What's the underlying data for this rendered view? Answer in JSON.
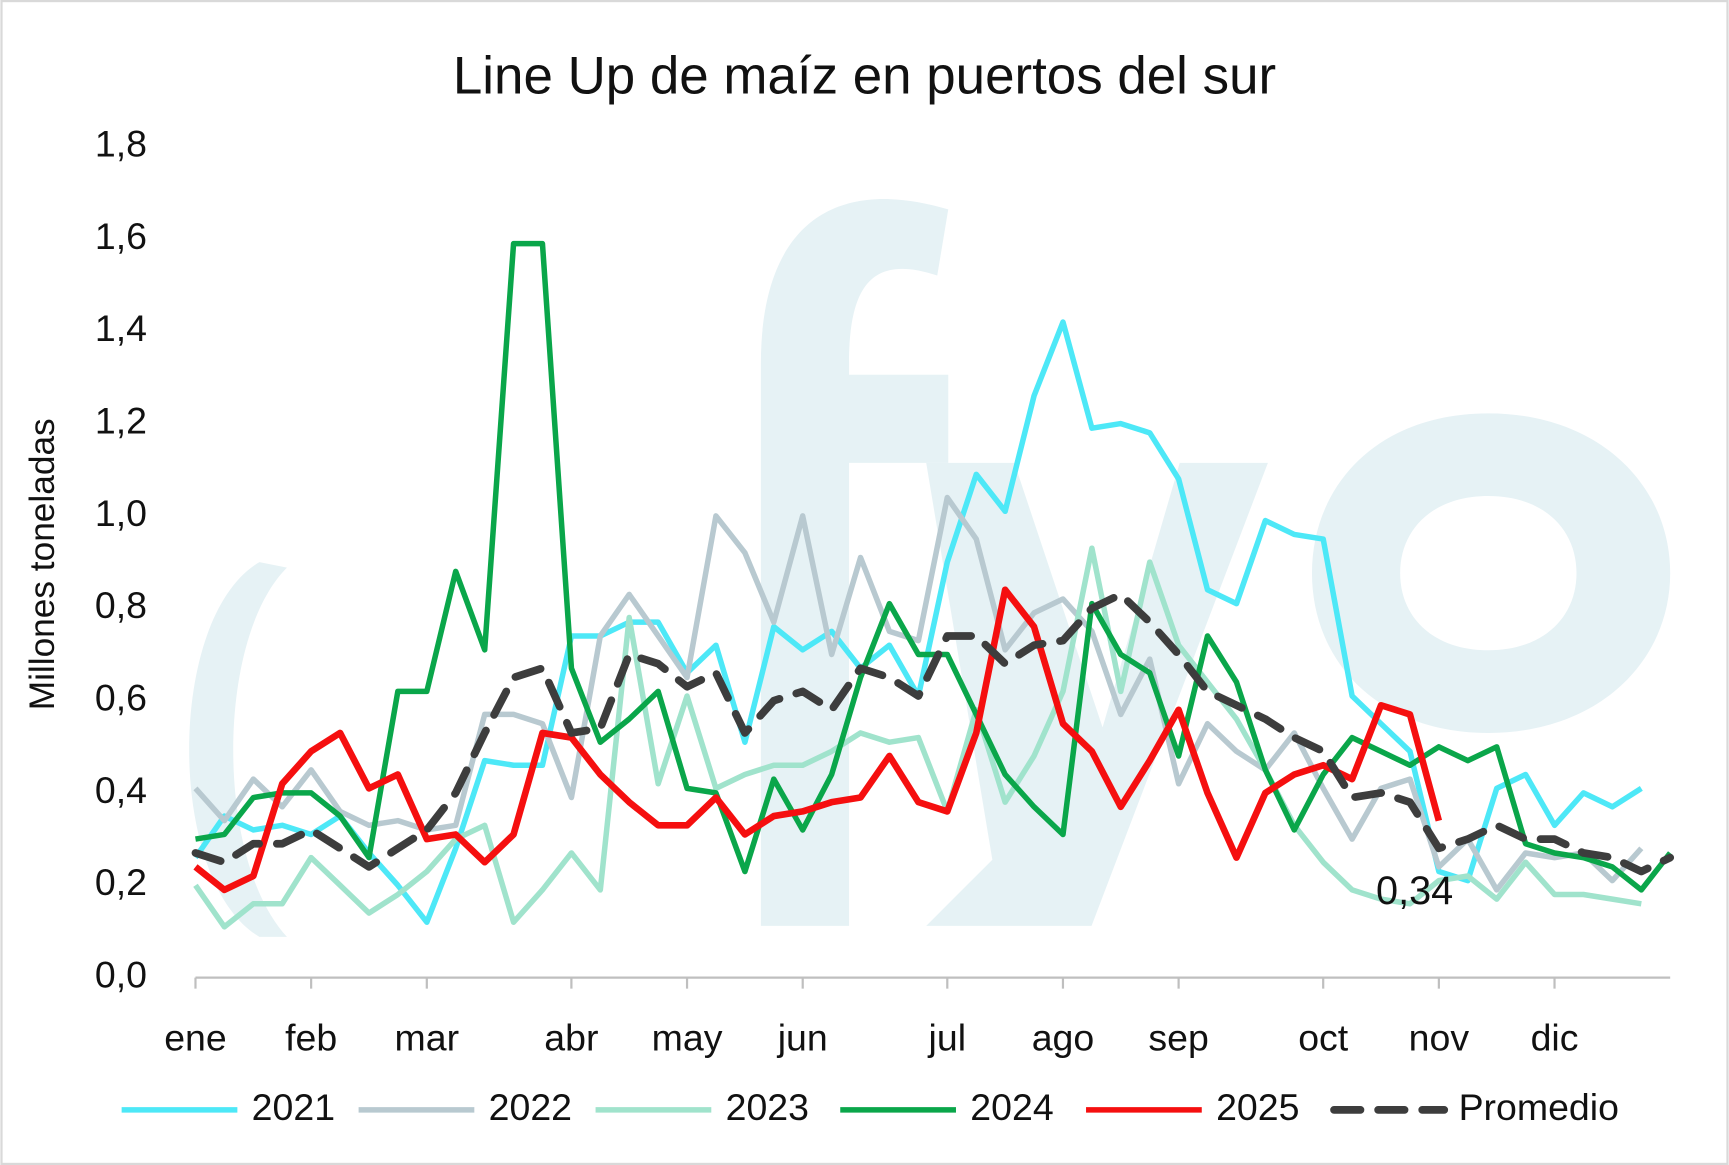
{
  "chart_data": {
    "type": "line",
    "title": "Line Up de maíz en puertos del sur",
    "ylabel": "Millones toneladas",
    "categories": [
      "ene",
      null,
      null,
      null,
      "feb",
      null,
      null,
      null,
      "mar",
      null,
      null,
      null,
      null,
      "abr",
      null,
      null,
      null,
      "may",
      null,
      null,
      null,
      "jun",
      null,
      null,
      null,
      null,
      "jul",
      null,
      null,
      null,
      "ago",
      null,
      null,
      null,
      "sep",
      null,
      null,
      null,
      null,
      "oct",
      null,
      null,
      null,
      "nov",
      null,
      null,
      null,
      "dic",
      null,
      null,
      null,
      null
    ],
    "ylim": [
      0,
      1.8
    ],
    "yticks": [
      {
        "value": 0,
        "label": "0,0"
      },
      {
        "value": 0.2,
        "label": "0,2"
      },
      {
        "value": 0.4,
        "label": "0,4"
      },
      {
        "value": 0.6,
        "label": "0,6"
      },
      {
        "value": 0.8,
        "label": "0,8"
      },
      {
        "value": 1.0,
        "label": "1,0"
      },
      {
        "value": 1.2,
        "label": "1,2"
      },
      {
        "value": 1.4,
        "label": "1,4"
      },
      {
        "value": 1.6,
        "label": "1,6"
      },
      {
        "value": 1.8,
        "label": "1,8"
      }
    ],
    "grid": false,
    "legend": "bottom",
    "series": [
      {
        "name": "2021",
        "color": "#4de8f7",
        "dash": false,
        "values": [
          0.26,
          0.35,
          0.32,
          0.33,
          0.31,
          0.35,
          0.27,
          0.2,
          0.12,
          0.28,
          0.47,
          0.46,
          0.46,
          0.74,
          0.74,
          0.77,
          0.77,
          0.66,
          0.72,
          0.51,
          0.76,
          0.71,
          0.75,
          0.67,
          0.72,
          0.61,
          0.9,
          1.09,
          1.01,
          1.26,
          1.42,
          1.19,
          1.2,
          1.18,
          1.08,
          0.84,
          0.81,
          0.99,
          0.96,
          0.95,
          0.61,
          0.55,
          0.49,
          0.23,
          0.21,
          0.41,
          0.44,
          0.33,
          0.4,
          0.37,
          0.41,
          null
        ]
      },
      {
        "name": "2022",
        "color": "#b8c9d0",
        "dash": false,
        "values": [
          0.41,
          0.34,
          0.43,
          0.37,
          0.45,
          0.36,
          0.33,
          0.34,
          0.32,
          0.33,
          0.57,
          0.57,
          0.55,
          0.39,
          0.74,
          0.83,
          0.74,
          0.65,
          1.0,
          0.92,
          0.77,
          1.0,
          0.7,
          0.91,
          0.75,
          0.73,
          1.04,
          0.95,
          0.71,
          0.79,
          0.82,
          0.75,
          0.57,
          0.69,
          0.42,
          0.55,
          0.49,
          0.45,
          0.53,
          0.41,
          0.3,
          0.41,
          0.43,
          0.24,
          0.3,
          0.19,
          0.27,
          0.26,
          0.27,
          0.21,
          0.28,
          null
        ]
      },
      {
        "name": "2023",
        "color": "#a0e3cc",
        "dash": false,
        "values": [
          0.2,
          0.11,
          0.16,
          0.16,
          0.26,
          0.2,
          0.14,
          0.18,
          0.23,
          0.3,
          0.33,
          0.12,
          0.19,
          0.27,
          0.19,
          0.78,
          0.42,
          0.61,
          0.41,
          0.44,
          0.46,
          0.46,
          0.49,
          0.53,
          0.51,
          0.52,
          0.36,
          0.58,
          0.38,
          0.48,
          0.62,
          0.93,
          0.62,
          0.9,
          0.72,
          0.64,
          0.56,
          0.45,
          0.33,
          0.25,
          0.19,
          0.17,
          0.16,
          0.21,
          0.22,
          0.17,
          0.25,
          0.18,
          0.18,
          0.17,
          0.16,
          null
        ]
      },
      {
        "name": "2024",
        "color": "#0aa64a",
        "dash": false,
        "values": [
          0.3,
          0.31,
          0.39,
          0.4,
          0.4,
          0.35,
          0.26,
          0.62,
          0.62,
          0.88,
          0.71,
          1.59,
          1.59,
          0.67,
          0.51,
          0.56,
          0.62,
          0.41,
          0.4,
          0.23,
          0.43,
          0.32,
          0.44,
          0.65,
          0.81,
          0.7,
          0.7,
          0.57,
          0.44,
          0.37,
          0.31,
          0.81,
          0.7,
          0.66,
          0.48,
          0.74,
          0.64,
          0.45,
          0.32,
          0.44,
          0.52,
          0.49,
          0.46,
          0.5,
          0.47,
          0.5,
          0.29,
          0.27,
          0.26,
          0.24,
          0.19,
          0.27
        ]
      },
      {
        "name": "2025",
        "color": "#f50f0f",
        "dash": false,
        "values": [
          0.24,
          0.19,
          0.22,
          0.42,
          0.49,
          0.53,
          0.41,
          0.44,
          0.3,
          0.31,
          0.25,
          0.31,
          0.53,
          0.52,
          0.44,
          0.38,
          0.33,
          0.33,
          0.39,
          0.31,
          0.35,
          0.36,
          0.38,
          0.39,
          0.48,
          0.38,
          0.36,
          0.53,
          0.84,
          0.76,
          0.55,
          0.49,
          0.37,
          0.47,
          0.58,
          0.4,
          0.26,
          0.4,
          0.44,
          0.46,
          0.43,
          0.59,
          0.57,
          0.34,
          null,
          null,
          null,
          null,
          null,
          null,
          null,
          null
        ]
      },
      {
        "name": "Promedio",
        "color": "#3d3d3d",
        "dash": true,
        "values": [
          0.27,
          0.25,
          0.29,
          0.29,
          0.32,
          0.28,
          0.24,
          0.28,
          0.32,
          0.4,
          0.53,
          0.65,
          0.67,
          0.53,
          0.54,
          0.7,
          0.68,
          0.63,
          0.66,
          0.53,
          0.6,
          0.62,
          0.58,
          0.67,
          0.65,
          0.61,
          0.74,
          0.74,
          0.68,
          0.72,
          0.73,
          0.8,
          0.83,
          0.77,
          0.7,
          0.62,
          0.59,
          0.56,
          0.52,
          0.49,
          0.39,
          0.4,
          0.38,
          0.28,
          0.3,
          0.33,
          0.3,
          0.3,
          0.27,
          0.26,
          0.23,
          0.26
        ]
      }
    ],
    "annotation": {
      "label": "0,34",
      "value": 0.34,
      "series": 4,
      "index": 43
    }
  }
}
